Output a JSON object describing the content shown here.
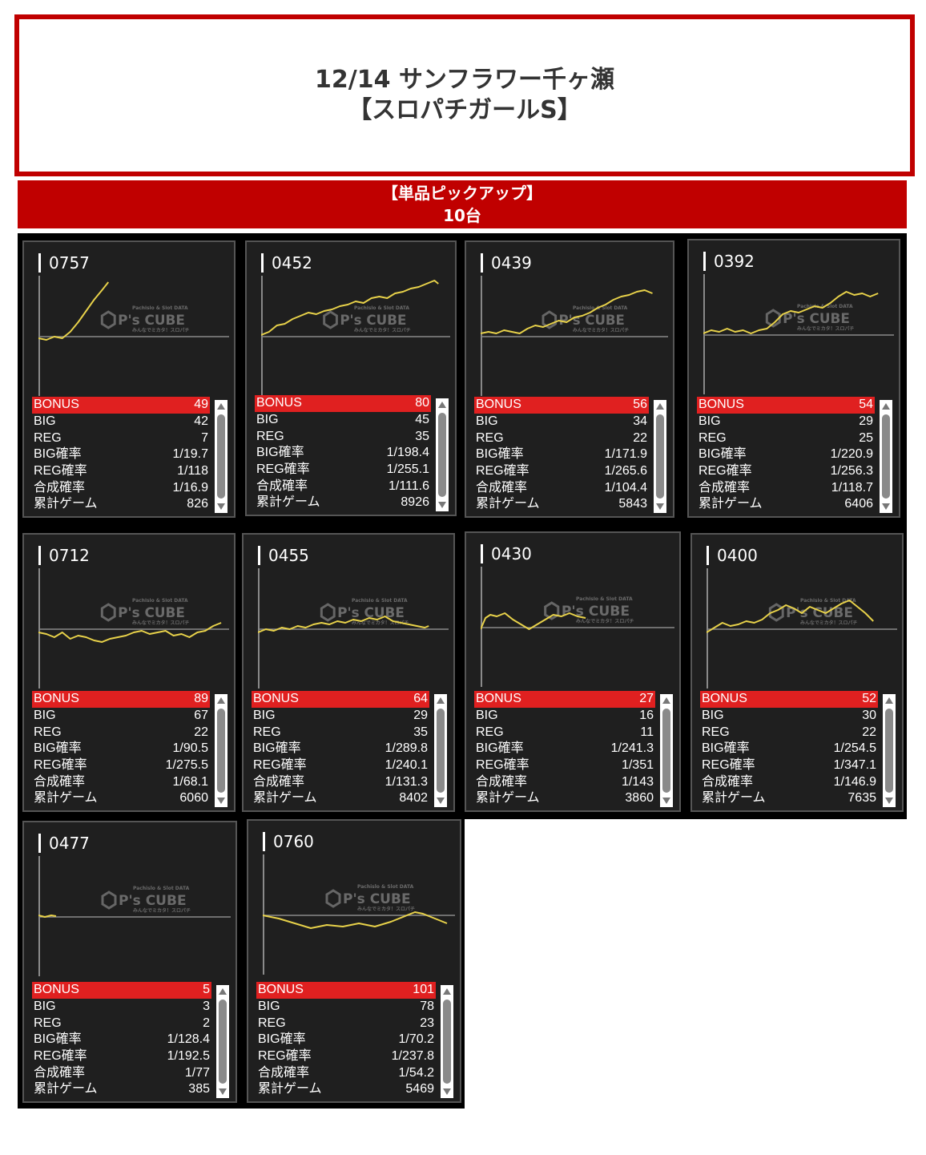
{
  "header": {
    "title_line1": "12/14 サンフラワー千ヶ瀬",
    "title_line2": "【スロパチガールS】"
  },
  "pickup": {
    "label": "【単品ピックアップ】",
    "count": "10台"
  },
  "watermark": {
    "text": "P's CUBE",
    "top": "Pachislo & Slot DATA",
    "sub": "みんなでミカタ！スロパチ"
  },
  "stat_labels": {
    "bonus": "BONUS",
    "big": "BIG",
    "reg": "REG",
    "big_rate": "BIG確率",
    "reg_rate": "REG確率",
    "total_rate": "合成確率",
    "games": "累計ゲーム"
  },
  "colors": {
    "accent_red": "#c00000",
    "bonus_red": "#e02020",
    "graph_line": "#e8d24a",
    "panel_bg": "#1f1f1f"
  },
  "machines": [
    {
      "id": "0757",
      "bonus": "49",
      "big": "42",
      "reg": "7",
      "big_rate": "1/19.7",
      "reg_rate": "1/118",
      "total_rate": "1/16.9",
      "games": "826"
    },
    {
      "id": "0452",
      "bonus": "80",
      "big": "45",
      "reg": "35",
      "big_rate": "1/198.4",
      "reg_rate": "1/255.1",
      "total_rate": "1/111.6",
      "games": "8926"
    },
    {
      "id": "0439",
      "bonus": "56",
      "big": "34",
      "reg": "22",
      "big_rate": "1/171.9",
      "reg_rate": "1/265.6",
      "total_rate": "1/104.4",
      "games": "5843"
    },
    {
      "id": "0392",
      "bonus": "54",
      "big": "29",
      "reg": "25",
      "big_rate": "1/220.9",
      "reg_rate": "1/256.3",
      "total_rate": "1/118.7",
      "games": "6406"
    },
    {
      "id": "0712",
      "bonus": "89",
      "big": "67",
      "reg": "22",
      "big_rate": "1/90.5",
      "reg_rate": "1/275.5",
      "total_rate": "1/68.1",
      "games": "6060"
    },
    {
      "id": "0455",
      "bonus": "64",
      "big": "29",
      "reg": "35",
      "big_rate": "1/289.8",
      "reg_rate": "1/240.1",
      "total_rate": "1/131.3",
      "games": "8402"
    },
    {
      "id": "0430",
      "bonus": "27",
      "big": "16",
      "reg": "11",
      "big_rate": "1/241.3",
      "reg_rate": "1/351",
      "total_rate": "1/143",
      "games": "3860"
    },
    {
      "id": "0400",
      "bonus": "52",
      "big": "30",
      "reg": "22",
      "big_rate": "1/254.5",
      "reg_rate": "1/347.1",
      "total_rate": "1/146.9",
      "games": "7635"
    },
    {
      "id": "0477",
      "bonus": "5",
      "big": "3",
      "reg": "2",
      "big_rate": "1/128.4",
      "reg_rate": "1/192.5",
      "total_rate": "1/77",
      "games": "385"
    },
    {
      "id": "0760",
      "bonus": "101",
      "big": "78",
      "reg": "23",
      "big_rate": "1/70.2",
      "reg_rate": "1/237.8",
      "total_rate": "1/54.2",
      "games": "5469"
    }
  ]
}
